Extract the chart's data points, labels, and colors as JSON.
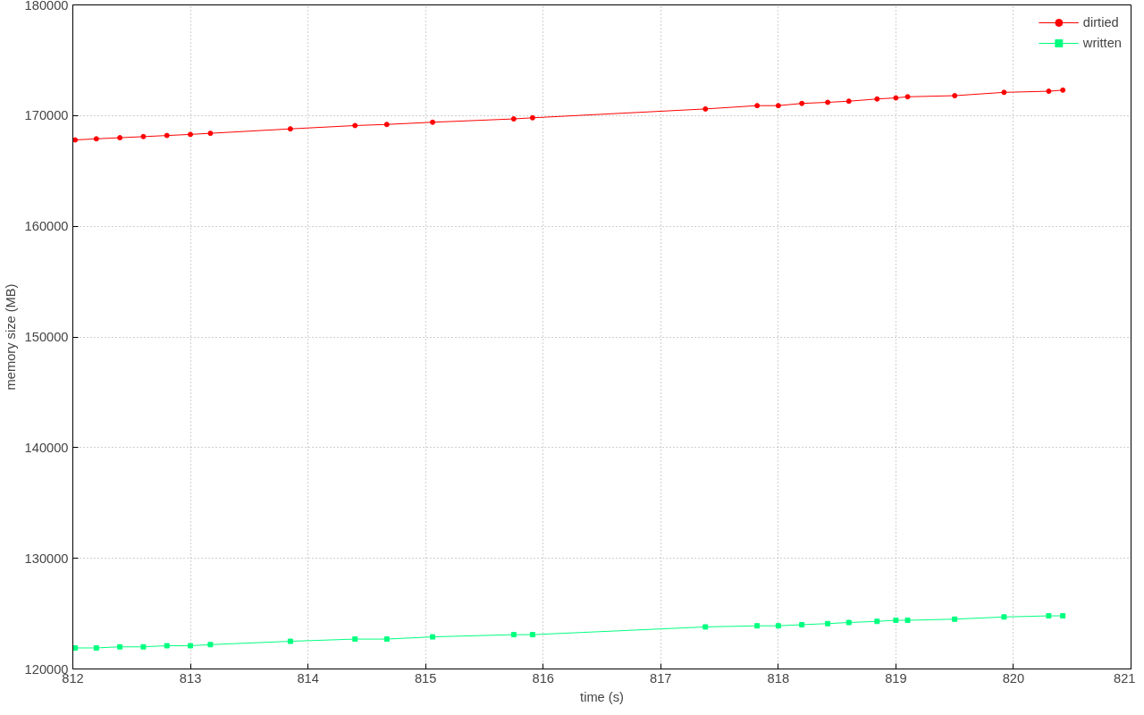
{
  "chart_data": {
    "type": "line",
    "xlabel": "time (s)",
    "ylabel": "memory size (MB)",
    "xlim": [
      812,
      821
    ],
    "xticks": [
      812,
      813,
      814,
      815,
      816,
      817,
      818,
      819,
      820,
      821
    ],
    "ylim": [
      120000,
      180000
    ],
    "yticks": [
      120000,
      130000,
      140000,
      150000,
      160000,
      170000,
      180000
    ],
    "grid": true,
    "legend": "top right",
    "line_style": "solid",
    "series": [
      {
        "name": "dirtied",
        "color": "#ff0000",
        "marker": "circle",
        "x": [
          812.02,
          812.2,
          812.4,
          812.6,
          812.8,
          813.0,
          813.17,
          813.85,
          814.4,
          814.67,
          815.06,
          815.75,
          815.91,
          817.38,
          817.82,
          818.0,
          818.2,
          818.42,
          818.6,
          818.84,
          819.0,
          819.1,
          819.5,
          819.92,
          820.3,
          820.42
        ],
        "values": [
          167800,
          167900,
          168000,
          168100,
          168200,
          168300,
          168400,
          168800,
          169100,
          169200,
          169400,
          169700,
          169800,
          170600,
          170900,
          170900,
          171100,
          171200,
          171300,
          171500,
          171600,
          171700,
          171800,
          172100,
          172200,
          172300
        ]
      },
      {
        "name": "written",
        "color": "#00ff7f",
        "marker": "square",
        "x": [
          812.02,
          812.2,
          812.4,
          812.6,
          812.8,
          813.0,
          813.17,
          813.85,
          814.4,
          814.67,
          815.06,
          815.75,
          815.91,
          817.38,
          817.82,
          818.0,
          818.2,
          818.42,
          818.6,
          818.84,
          819.0,
          819.1,
          819.5,
          819.92,
          820.3,
          820.42
        ],
        "values": [
          121900,
          121900,
          122000,
          122000,
          122100,
          122100,
          122200,
          122500,
          122700,
          122700,
          122900,
          123100,
          123100,
          123800,
          123900,
          123900,
          124000,
          124100,
          124200,
          124300,
          124400,
          124400,
          124500,
          124700,
          124800,
          124800
        ]
      }
    ]
  }
}
